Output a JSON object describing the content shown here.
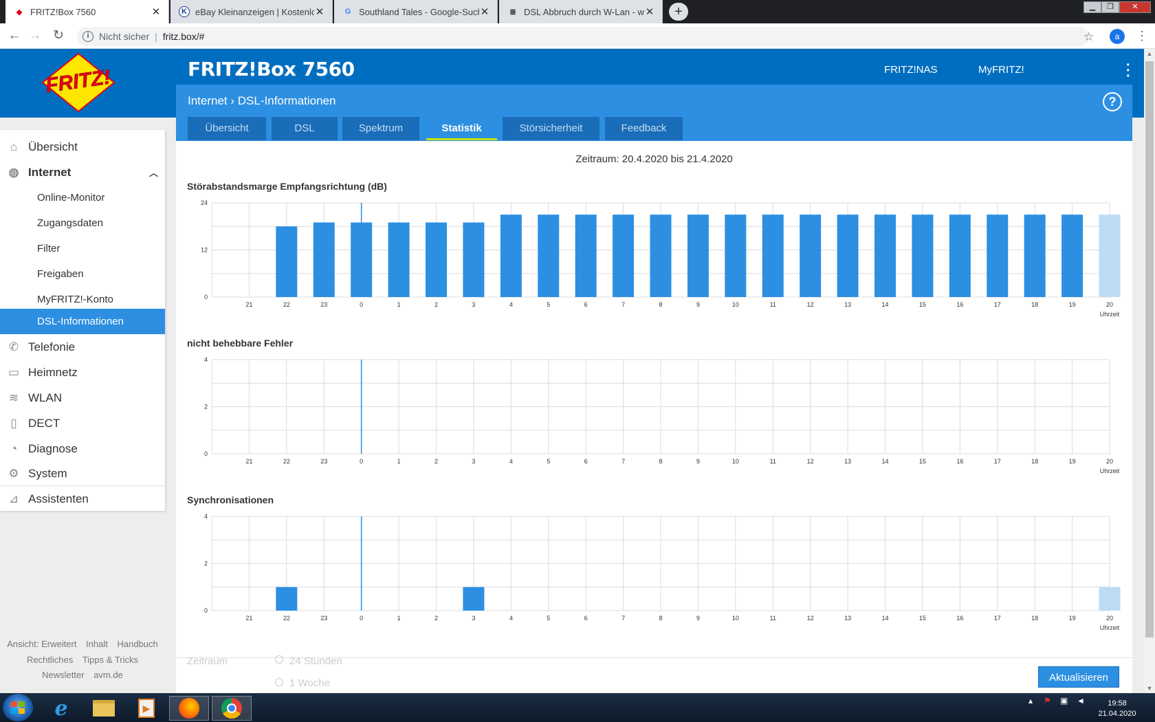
{
  "browser": {
    "tabs": [
      {
        "title": "FRITZ!Box 7560",
        "active": true
      },
      {
        "title": "eBay Kleinanzeigen | Kostenlos. E",
        "active": false
      },
      {
        "title": "Southland Tales - Google-Suche",
        "active": false
      },
      {
        "title": "DSL Abbruch durch W-Lan - wer",
        "active": false
      }
    ],
    "security": "Nicht sicher",
    "url": "fritz.box/#",
    "profile_initial": "a"
  },
  "header": {
    "product": "FRITZ!Box 7560",
    "links": [
      "FRITZ!NAS",
      "MyFRITZ!"
    ]
  },
  "breadcrumb": {
    "section": "Internet",
    "page": "DSL-Informationen"
  },
  "page_tabs": [
    "Übersicht",
    "DSL",
    "Spektrum",
    "Statistik",
    "Störsicherheit",
    "Feedback"
  ],
  "active_tab": "Statistik",
  "sidebar": {
    "items": [
      {
        "label": "Übersicht",
        "icon": "home-icon"
      },
      {
        "label": "Internet",
        "icon": "globe-icon",
        "expanded": true
      },
      {
        "label": "Telefonie",
        "icon": "phone-icon"
      },
      {
        "label": "Heimnetz",
        "icon": "network-icon"
      },
      {
        "label": "WLAN",
        "icon": "wifi-icon"
      },
      {
        "label": "DECT",
        "icon": "dect-icon"
      },
      {
        "label": "Diagnose",
        "icon": "diagnose-icon"
      },
      {
        "label": "System",
        "icon": "system-icon"
      },
      {
        "label": "Assistenten",
        "icon": "wizard-icon"
      }
    ],
    "sub_items": [
      "Online-Monitor",
      "Zugangsdaten",
      "Filter",
      "Freigaben",
      "MyFRITZ!-Konto",
      "DSL-Informationen"
    ],
    "active_sub": "DSL-Informationen",
    "footer_row1": [
      "Ansicht: Erweitert",
      "Inhalt",
      "Handbuch"
    ],
    "footer_row2": [
      "Rechtliches",
      "Tipps & Tricks"
    ],
    "footer_row3": [
      "Newsletter",
      "avm.de"
    ]
  },
  "main": {
    "zeitraum_text": "Zeitraum: 20.4.2020 bis 21.4.2020",
    "period_label": "Zeitraum",
    "period_options": [
      "24 Stunden",
      "1 Woche"
    ],
    "update_button": "Aktualisieren"
  },
  "chart_data": [
    {
      "type": "bar",
      "title": "Störabstandsmarge Empfangsrichtung (dB)",
      "xlabel": "Uhrzeit",
      "categories": [
        "21",
        "22",
        "23",
        "0",
        "1",
        "2",
        "3",
        "4",
        "5",
        "6",
        "7",
        "8",
        "9",
        "10",
        "11",
        "12",
        "13",
        "14",
        "15",
        "16",
        "17",
        "18",
        "19",
        "20"
      ],
      "values": [
        null,
        18,
        19,
        19,
        19,
        19,
        19,
        21,
        21,
        21,
        21,
        21,
        21,
        21,
        21,
        21,
        21,
        21,
        21,
        21,
        21,
        21,
        21,
        21
      ],
      "current_index": 23,
      "ylim": [
        0,
        24
      ],
      "yticks": [
        0,
        12,
        24
      ]
    },
    {
      "type": "bar",
      "title": "nicht behebbare Fehler",
      "xlabel": "Uhrzeit",
      "categories": [
        "21",
        "22",
        "23",
        "0",
        "1",
        "2",
        "3",
        "4",
        "5",
        "6",
        "7",
        "8",
        "9",
        "10",
        "11",
        "12",
        "13",
        "14",
        "15",
        "16",
        "17",
        "18",
        "19",
        "20"
      ],
      "values": [
        0,
        0,
        0,
        0,
        0,
        0,
        0,
        0,
        0,
        0,
        0,
        0,
        0,
        0,
        0,
        0,
        0,
        0,
        0,
        0,
        0,
        0,
        0,
        0
      ],
      "current_index": 23,
      "ylim": [
        0,
        4
      ],
      "yticks": [
        0,
        2,
        4
      ]
    },
    {
      "type": "bar",
      "title": "Synchronisationen",
      "xlabel": "Uhrzeit",
      "categories": [
        "21",
        "22",
        "23",
        "0",
        "1",
        "2",
        "3",
        "4",
        "5",
        "6",
        "7",
        "8",
        "9",
        "10",
        "11",
        "12",
        "13",
        "14",
        "15",
        "16",
        "17",
        "18",
        "19",
        "20"
      ],
      "values": [
        0,
        1,
        0,
        0,
        0,
        0,
        1,
        0,
        0,
        0,
        0,
        0,
        0,
        0,
        0,
        0,
        0,
        0,
        0,
        0,
        0,
        0,
        0,
        1
      ],
      "current_index": 23,
      "ylim": [
        0,
        4
      ],
      "yticks": [
        0,
        2,
        4
      ]
    }
  ],
  "colors": {
    "header_blue": "#006ec0",
    "accent_blue": "#2d8fe2",
    "bar": "#2d8fe2",
    "bar_current": "#bcdcf6",
    "tab_underline": "#c8e600",
    "midnight_line": "#2d8fe2"
  },
  "taskbar": {
    "clock_time": "19:58",
    "clock_date": "21.04.2020",
    "apps": [
      "internet-explorer-icon",
      "explorer-icon",
      "media-player-icon",
      "firefox-icon",
      "chrome-icon"
    ]
  }
}
